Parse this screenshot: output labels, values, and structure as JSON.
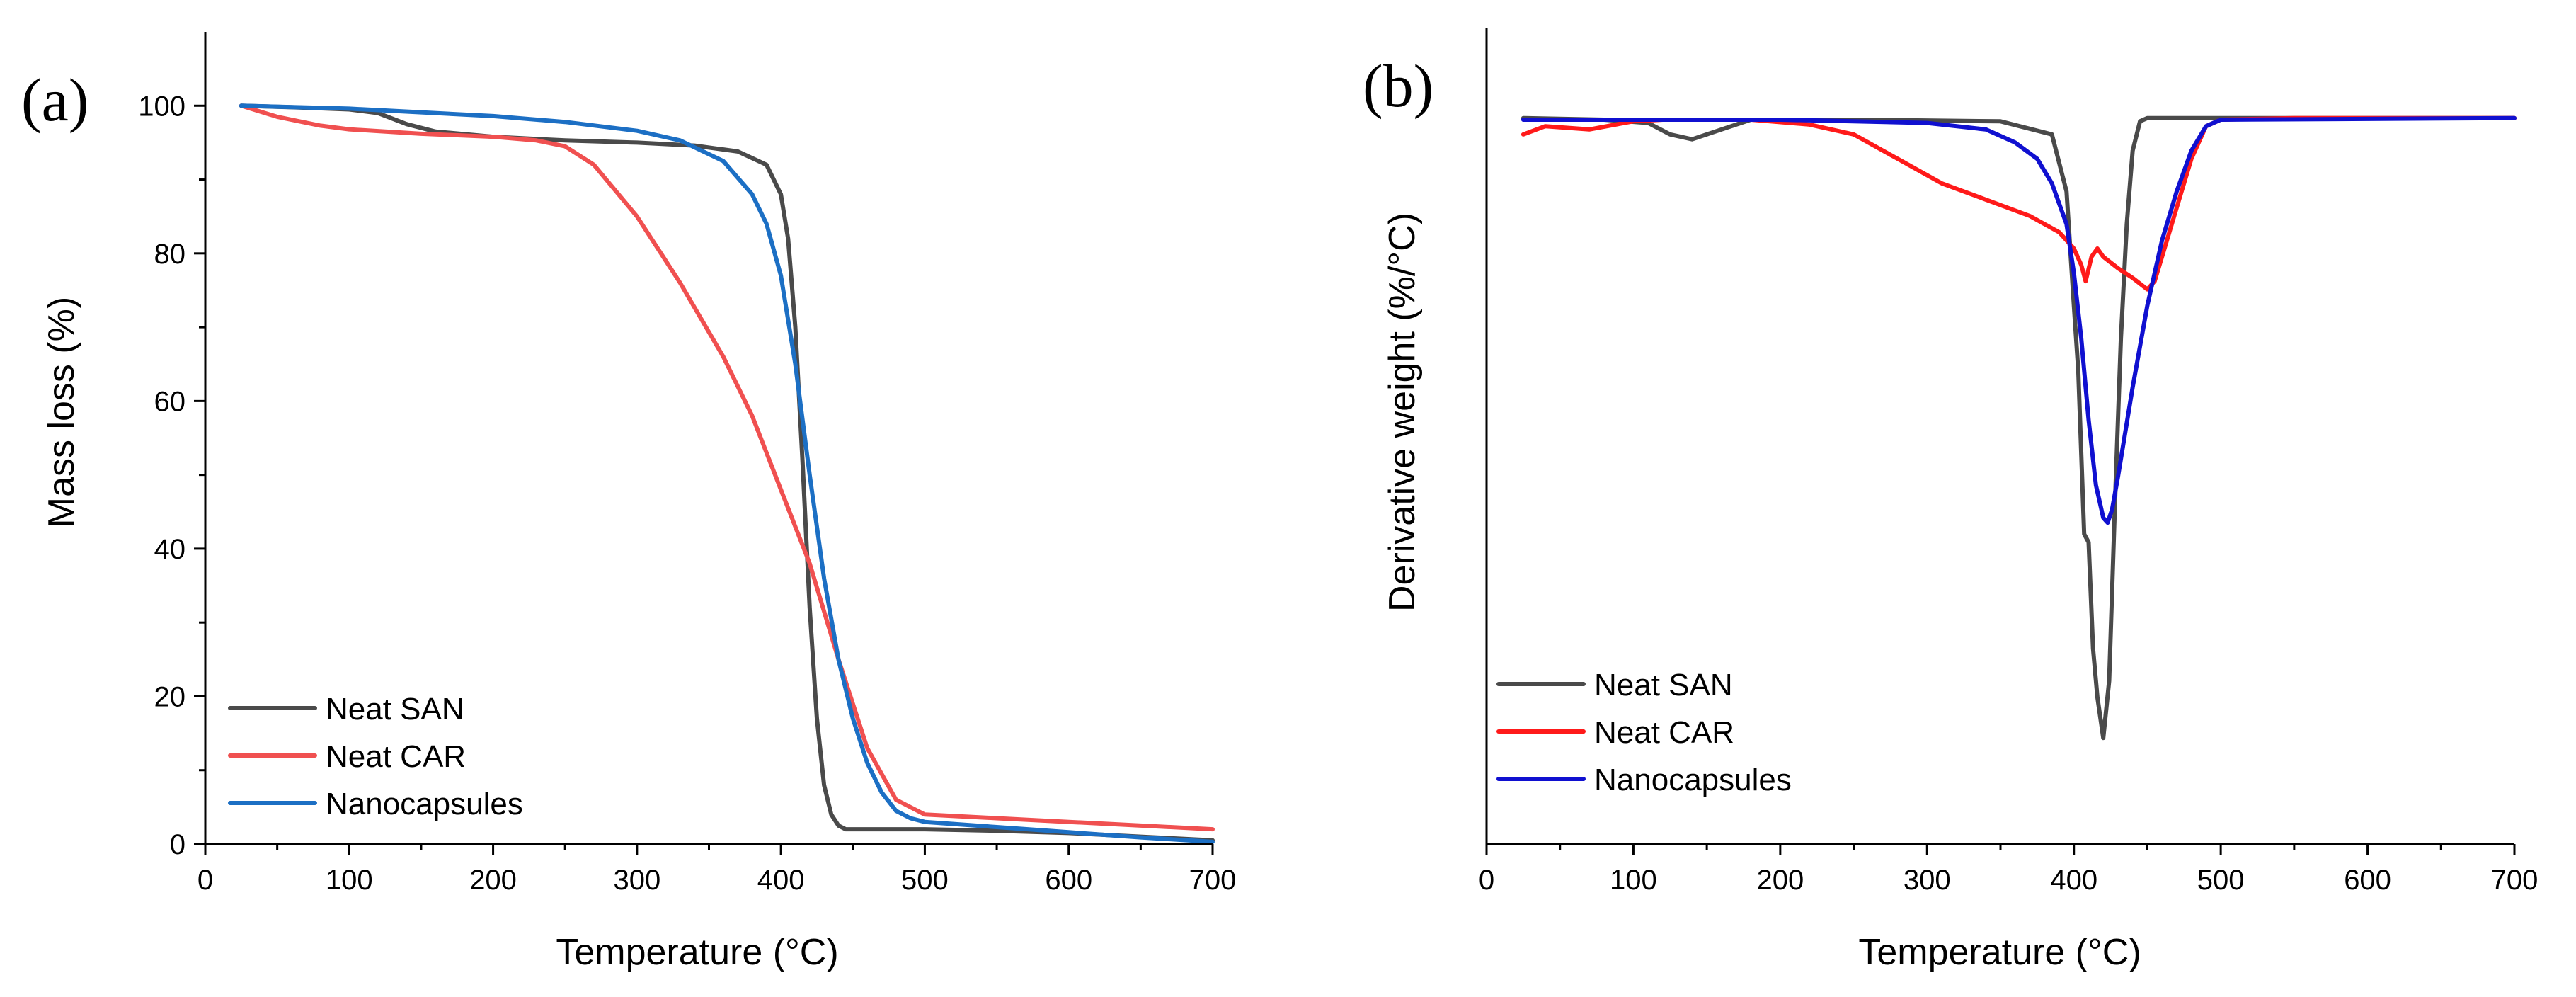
{
  "chart_data": [
    {
      "type": "line",
      "panel_label": "(a)",
      "title": "",
      "xlabel": "Temperature (°C)",
      "ylabel": "Mass loss (%)",
      "xlim": [
        0,
        700
      ],
      "ylim": [
        0,
        110
      ],
      "xticks": [
        0,
        100,
        200,
        300,
        400,
        500,
        600,
        700
      ],
      "yticks": [
        0,
        20,
        40,
        60,
        80,
        100
      ],
      "legend_position": "bottom-left",
      "series": [
        {
          "name": "Neat SAN",
          "color": "#4a4a4a",
          "x": [
            25,
            60,
            100,
            120,
            140,
            160,
            200,
            250,
            300,
            340,
            370,
            390,
            400,
            405,
            410,
            415,
            420,
            425,
            430,
            435,
            440,
            445,
            450,
            500,
            550,
            600,
            650,
            700
          ],
          "y": [
            100,
            99.8,
            99.5,
            99,
            97.5,
            96.5,
            95.8,
            95.3,
            95,
            94.6,
            93.8,
            92,
            88,
            82,
            70,
            52,
            32,
            17,
            8,
            4,
            2.5,
            2,
            2,
            2,
            1.8,
            1.5,
            1,
            0.5
          ]
        },
        {
          "name": "Neat CAR",
          "color": "#f05050",
          "x": [
            25,
            50,
            80,
            100,
            150,
            200,
            230,
            250,
            270,
            300,
            330,
            360,
            380,
            400,
            420,
            440,
            460,
            480,
            500,
            550,
            600,
            650,
            700
          ],
          "y": [
            100,
            98.5,
            97.3,
            96.8,
            96.2,
            95.8,
            95.3,
            94.5,
            92,
            85,
            76,
            66,
            58,
            48,
            38,
            25,
            13,
            6,
            4,
            3.5,
            3,
            2.5,
            2
          ]
        },
        {
          "name": "Nanocapsules",
          "color": "#1c6fc4",
          "x": [
            25,
            100,
            200,
            250,
            300,
            330,
            360,
            380,
            390,
            400,
            410,
            420,
            430,
            440,
            450,
            460,
            470,
            480,
            490,
            500,
            550,
            600,
            650,
            700
          ],
          "y": [
            100,
            99.6,
            98.6,
            97.8,
            96.6,
            95.3,
            92.5,
            88,
            84,
            77,
            65,
            50,
            36,
            25,
            17,
            11,
            7,
            4.5,
            3.5,
            3,
            2.3,
            1.6,
            0.9,
            0.3
          ]
        }
      ]
    },
    {
      "type": "line",
      "panel_label": "(b)",
      "title": "",
      "xlabel": "Temperature (°C)",
      "ylabel": "Derivative weight (%/°C)",
      "xlim": [
        0,
        700
      ],
      "ylim": [
        -45,
        5
      ],
      "y_ticks_shown": false,
      "xticks": [
        0,
        100,
        200,
        300,
        400,
        500,
        600,
        700
      ],
      "legend_position": "bottom-left",
      "series": [
        {
          "name": "Neat SAN",
          "color": "#4a4a4a",
          "x": [
            25,
            80,
            110,
            125,
            140,
            160,
            180,
            250,
            350,
            385,
            395,
            400,
            403,
            407,
            410,
            413,
            416,
            420,
            424,
            428,
            432,
            436,
            440,
            445,
            450,
            500,
            600,
            700
          ],
          "y": [
            -0.5,
            -0.6,
            -0.8,
            -1.5,
            -1.8,
            -1.2,
            -0.6,
            -0.6,
            -0.7,
            -1.5,
            -5,
            -12,
            -16,
            -26,
            -26.5,
            -33,
            -36,
            -38.5,
            -35,
            -24,
            -14,
            -7,
            -2.5,
            -0.7,
            -0.5,
            -0.5,
            -0.5,
            -0.5
          ]
        },
        {
          "name": "Neat CAR",
          "color": "#ff1a1a",
          "x": [
            25,
            40,
            70,
            100,
            120,
            150,
            180,
            220,
            250,
            280,
            310,
            340,
            370,
            390,
            400,
            405,
            408,
            412,
            416,
            420,
            430,
            440,
            450,
            455,
            460,
            470,
            480,
            490,
            500,
            550,
            700
          ],
          "y": [
            -1.5,
            -1,
            -1.2,
            -0.7,
            -0.6,
            -0.6,
            -0.6,
            -0.9,
            -1.5,
            -3,
            -4.5,
            -5.5,
            -6.5,
            -7.5,
            -8.5,
            -9.5,
            -10.5,
            -9,
            -8.5,
            -9,
            -9.7,
            -10.3,
            -11,
            -10.5,
            -9,
            -6,
            -3,
            -1,
            -0.6,
            -0.5,
            -0.5
          ]
        },
        {
          "name": "Nanocapsules",
          "color": "#1010d0",
          "x": [
            25,
            100,
            200,
            300,
            340,
            360,
            375,
            385,
            395,
            400,
            405,
            410,
            415,
            420,
            423,
            426,
            430,
            440,
            450,
            460,
            470,
            480,
            490,
            500,
            700
          ],
          "y": [
            -0.6,
            -0.6,
            -0.6,
            -0.8,
            -1.2,
            -2,
            -3,
            -4.5,
            -7,
            -10,
            -14,
            -19,
            -23,
            -25,
            -25.3,
            -24.5,
            -22.5,
            -17,
            -12,
            -8,
            -5,
            -2.5,
            -1,
            -0.6,
            -0.5
          ]
        }
      ]
    }
  ]
}
